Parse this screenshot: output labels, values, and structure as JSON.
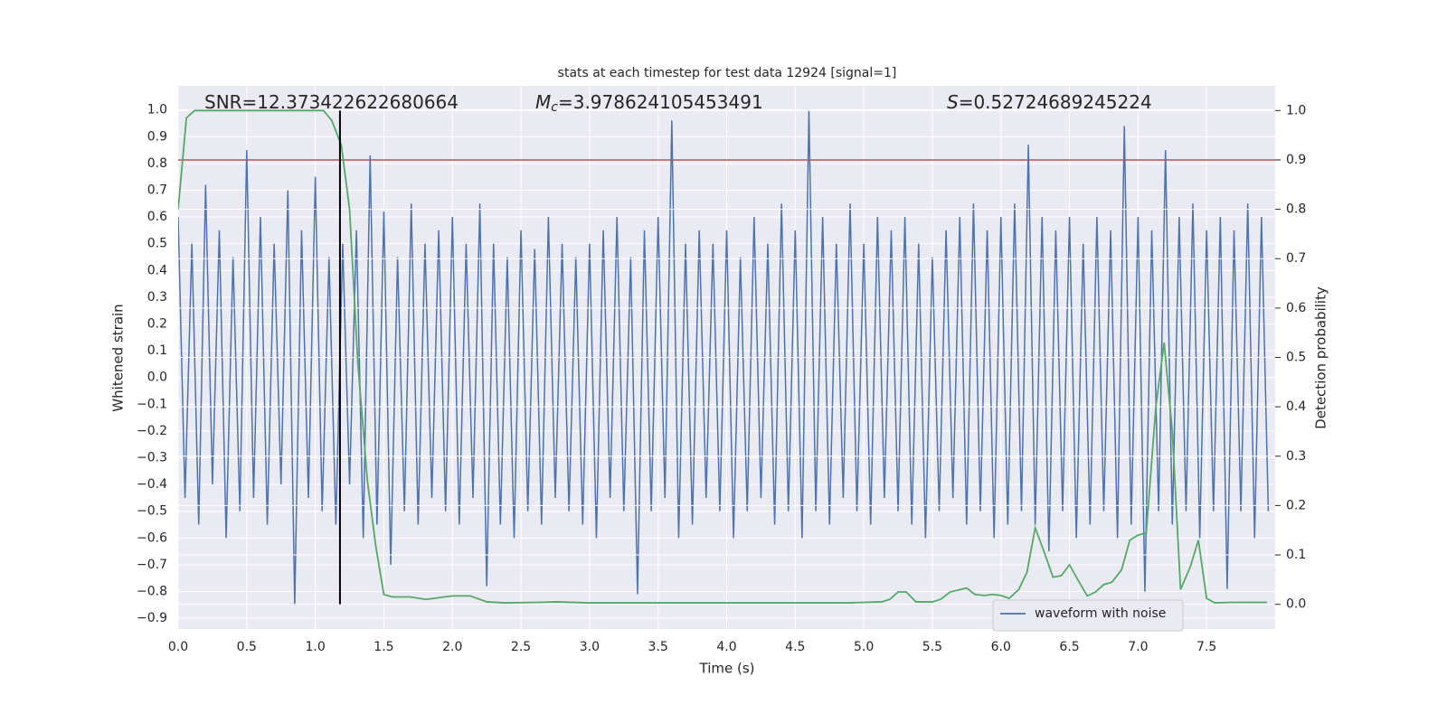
{
  "chart_data": {
    "type": "line",
    "title": "stats at each timestep for test data 12924 [signal=1]",
    "x_label": "Time (s)",
    "y_label": "Whitened strain",
    "y2_label": "Detection probability",
    "xlim": [
      0,
      8.0
    ],
    "ylim": [
      -0.94,
      1.09
    ],
    "y2lim": [
      -0.05,
      1.05
    ],
    "xticks": [
      {
        "value": 0,
        "label": "0.0"
      },
      {
        "value": 0.5,
        "label": "0.5"
      },
      {
        "value": 1,
        "label": "1.0"
      },
      {
        "value": 1.5,
        "label": "1.5"
      },
      {
        "value": 2,
        "label": "2.0"
      },
      {
        "value": 2.5,
        "label": "2.5"
      },
      {
        "value": 3,
        "label": "3.0"
      },
      {
        "value": 3.5,
        "label": "3.5"
      },
      {
        "value": 4,
        "label": "4.0"
      },
      {
        "value": 4.5,
        "label": "4.5"
      },
      {
        "value": 5,
        "label": "5.0"
      },
      {
        "value": 5.5,
        "label": "5.5"
      },
      {
        "value": 6,
        "label": "6.0"
      },
      {
        "value": 6.5,
        "label": "6.5"
      },
      {
        "value": 7,
        "label": "7.0"
      },
      {
        "value": 7.5,
        "label": "7.5"
      }
    ],
    "yticks": [
      {
        "value": -0.9,
        "label": "−0.9"
      },
      {
        "value": -0.8,
        "label": "−0.8"
      },
      {
        "value": -0.7,
        "label": "−0.7"
      },
      {
        "value": -0.6,
        "label": "−0.6"
      },
      {
        "value": -0.5,
        "label": "−0.5"
      },
      {
        "value": -0.4,
        "label": "−0.4"
      },
      {
        "value": -0.3,
        "label": "−0.3"
      },
      {
        "value": -0.2,
        "label": "−0.2"
      },
      {
        "value": -0.1,
        "label": "−0.1"
      },
      {
        "value": 0,
        "label": "0.0"
      },
      {
        "value": 0.1,
        "label": "0.1"
      },
      {
        "value": 0.2,
        "label": "0.2"
      },
      {
        "value": 0.3,
        "label": "0.3"
      },
      {
        "value": 0.4,
        "label": "0.4"
      },
      {
        "value": 0.5,
        "label": "0.5"
      },
      {
        "value": 0.6,
        "label": "0.6"
      },
      {
        "value": 0.7,
        "label": "0.7"
      },
      {
        "value": 0.8,
        "label": "0.8"
      },
      {
        "value": 0.9,
        "label": "0.9"
      },
      {
        "value": 1,
        "label": "1.0"
      }
    ],
    "y2ticks": [
      {
        "value": 0,
        "label": "0.0"
      },
      {
        "value": 0.1,
        "label": "0.1"
      },
      {
        "value": 0.2,
        "label": "0.2"
      },
      {
        "value": 0.3,
        "label": "0.3"
      },
      {
        "value": 0.4,
        "label": "0.4"
      },
      {
        "value": 0.5,
        "label": "0.5"
      },
      {
        "value": 0.6,
        "label": "0.6"
      },
      {
        "value": 0.7,
        "label": "0.7"
      },
      {
        "value": 0.8,
        "label": "0.8"
      },
      {
        "value": 0.9,
        "label": "0.9"
      },
      {
        "value": 1,
        "label": "1.0"
      }
    ],
    "grid": true,
    "legend": "lower right",
    "series": [
      {
        "name": "waveform with noise",
        "color": "#4c72b0",
        "x": [
          0,
          0.05,
          0.1,
          0.15,
          0.2,
          0.25,
          0.3,
          0.35,
          0.4,
          0.45,
          0.5,
          0.55,
          0.6,
          0.65,
          0.7,
          0.75,
          0.8,
          0.85,
          0.9,
          0.95,
          1,
          1.05,
          1.1,
          1.15,
          1.2,
          1.25,
          1.3,
          1.35,
          1.4,
          1.45,
          1.5,
          1.55,
          1.6,
          1.65,
          1.7,
          1.75,
          1.8,
          1.85,
          1.9,
          1.95,
          2,
          2.05,
          2.1,
          2.15,
          2.2,
          2.25,
          2.3,
          2.35,
          2.4,
          2.45,
          2.5,
          2.55,
          2.6,
          2.65,
          2.7,
          2.75,
          2.8,
          2.85,
          2.9,
          2.95,
          3,
          3.05,
          3.1,
          3.15,
          3.2,
          3.25,
          3.3,
          3.35,
          3.4,
          3.45,
          3.5,
          3.55,
          3.6,
          3.65,
          3.7,
          3.75,
          3.8,
          3.85,
          3.9,
          3.95,
          4,
          4.05,
          4.1,
          4.15,
          4.2,
          4.25,
          4.3,
          4.35,
          4.4,
          4.45,
          4.5,
          4.55,
          4.6,
          4.65,
          4.7,
          4.75,
          4.8,
          4.85,
          4.9,
          4.95,
          5,
          5.05,
          5.1,
          5.15,
          5.2,
          5.25,
          5.3,
          5.35,
          5.4,
          5.45,
          5.5,
          5.55,
          5.6,
          5.65,
          5.7,
          5.75,
          5.8,
          5.85,
          5.9,
          5.95,
          6,
          6.05,
          6.1,
          6.15,
          6.2,
          6.25,
          6.3,
          6.35,
          6.4,
          6.45,
          6.5,
          6.55,
          6.6,
          6.65,
          6.7,
          6.75,
          6.8,
          6.85,
          6.9,
          6.95,
          7,
          7.05,
          7.1,
          7.15,
          7.2,
          7.25,
          7.3,
          7.35,
          7.4,
          7.45,
          7.5,
          7.55,
          7.6,
          7.65,
          7.7,
          7.75,
          7.8,
          7.85,
          7.9,
          7.95
        ],
        "values": [
          0.6,
          -0.45,
          0.5,
          -0.55,
          0.72,
          -0.4,
          0.55,
          -0.6,
          0.45,
          -0.5,
          0.85,
          -0.45,
          0.6,
          -0.55,
          0.5,
          -0.4,
          0.7,
          -0.85,
          0.55,
          -0.45,
          0.75,
          -0.5,
          0.45,
          -0.55,
          0.5,
          -0.4,
          0.55,
          -0.6,
          0.83,
          -0.55,
          0.62,
          -0.7,
          0.45,
          -0.5,
          0.65,
          -0.55,
          0.5,
          -0.45,
          0.55,
          -0.5,
          0.6,
          -0.55,
          0.5,
          -0.45,
          0.65,
          -0.78,
          0.5,
          -0.55,
          0.45,
          -0.6,
          0.55,
          -0.5,
          0.48,
          -0.55,
          0.6,
          -0.45,
          0.5,
          -0.5,
          0.45,
          -0.55,
          0.5,
          -0.6,
          0.55,
          -0.45,
          0.6,
          -0.5,
          0.45,
          -0.81,
          0.55,
          -0.5,
          0.6,
          -0.45,
          0.96,
          -0.6,
          0.5,
          -0.55,
          0.55,
          -0.45,
          0.5,
          -0.5,
          0.55,
          -0.6,
          0.45,
          -0.5,
          0.6,
          -0.45,
          0.5,
          -0.55,
          0.65,
          -0.5,
          0.55,
          -0.6,
          1.0,
          -0.5,
          0.6,
          -0.55,
          0.5,
          -0.45,
          0.65,
          -0.5,
          0.5,
          -0.55,
          0.6,
          -0.45,
          0.55,
          -0.5,
          0.6,
          -0.55,
          0.5,
          -0.6,
          0.45,
          -0.5,
          0.55,
          -0.45,
          0.6,
          -0.55,
          0.65,
          -0.5,
          0.55,
          -0.6,
          0.6,
          -0.55,
          0.65,
          -0.5,
          0.87,
          -0.55,
          0.6,
          -0.65,
          0.55,
          -0.5,
          0.6,
          -0.6,
          0.5,
          -0.55,
          0.6,
          -0.5,
          0.55,
          -0.6,
          0.94,
          -0.55,
          0.6,
          -0.8,
          0.55,
          -0.5,
          0.85,
          -0.55,
          0.6,
          -0.5,
          0.65,
          -0.6,
          0.55,
          -0.5,
          0.6,
          -0.79,
          0.55,
          -0.5,
          0.65,
          -0.6,
          0.6,
          -0.5
        ]
      },
      {
        "color": "#55a868",
        "axis": "y2",
        "x": [
          0,
          0.06,
          0.12,
          1.0,
          1.06,
          1.12,
          1.19,
          1.25,
          1.31,
          1.38,
          1.44,
          1.5,
          1.56,
          1.69,
          1.81,
          1.94,
          2.0,
          2.13,
          2.25,
          2.38,
          2.63,
          2.75,
          3.0,
          3.5,
          4.0,
          4.5,
          4.88,
          5.0,
          5.13,
          5.19,
          5.25,
          5.31,
          5.38,
          5.5,
          5.56,
          5.63,
          5.75,
          5.81,
          5.88,
          5.94,
          6.0,
          6.06,
          6.13,
          6.19,
          6.25,
          6.31,
          6.38,
          6.44,
          6.5,
          6.56,
          6.63,
          6.69,
          6.75,
          6.81,
          6.88,
          6.94,
          7.0,
          7.06,
          7.13,
          7.19,
          7.25,
          7.31,
          7.38,
          7.44,
          7.5,
          7.56,
          7.69,
          7.94
        ],
        "values": [
          0.8,
          0.985,
          1.0,
          1.0,
          1.0,
          0.98,
          0.93,
          0.8,
          0.49,
          0.25,
          0.12,
          0.02,
          0.015,
          0.015,
          0.01,
          0.015,
          0.017,
          0.017,
          0.005,
          0.003,
          0.004,
          0.005,
          0.003,
          0.003,
          0.003,
          0.003,
          0.003,
          0.004,
          0.005,
          0.01,
          0.025,
          0.025,
          0.005,
          0.005,
          0.01,
          0.025,
          0.033,
          0.02,
          0.018,
          0.02,
          0.018,
          0.012,
          0.03,
          0.065,
          0.155,
          0.11,
          0.055,
          0.058,
          0.08,
          0.05,
          0.017,
          0.025,
          0.04,
          0.045,
          0.07,
          0.13,
          0.14,
          0.145,
          0.4,
          0.53,
          0.35,
          0.03,
          0.075,
          0.13,
          0.012,
          0.003,
          0.004,
          0.004
        ]
      }
    ],
    "hline": {
      "value": 0.9,
      "axis": "y2",
      "color": "#c44e52"
    },
    "vline": {
      "x": 1.18,
      "range": [
        0,
        1
      ],
      "axis": "y2",
      "color": "#000000"
    },
    "annotations": [
      {
        "text": "SNR=12.373422622680664"
      },
      {
        "symbol": "M",
        "subscript": "c",
        "text": "=3.978624105453491"
      },
      {
        "symbol": "S",
        "text": "=0.52724689245224"
      }
    ]
  }
}
